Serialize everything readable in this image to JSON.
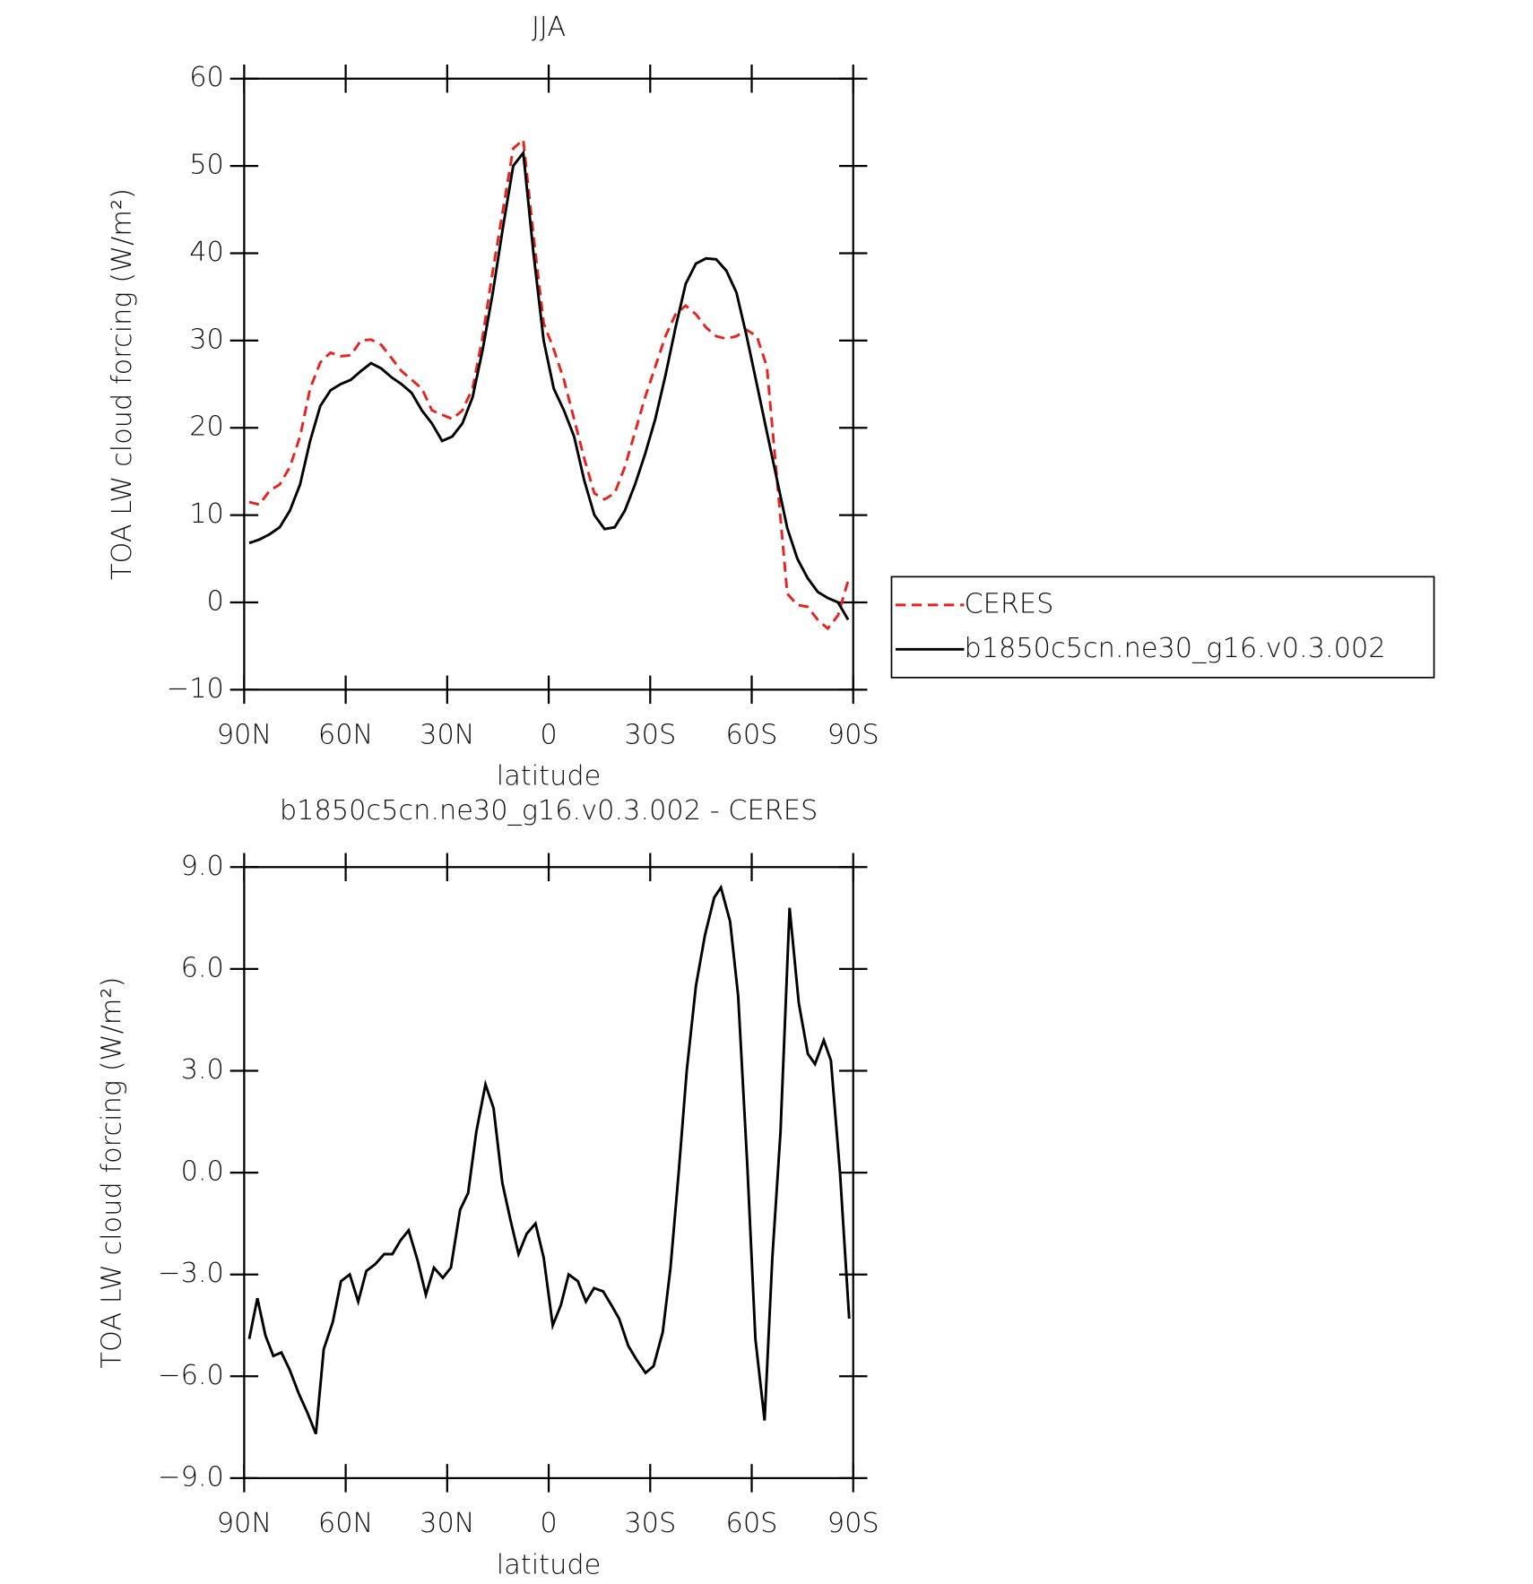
{
  "chart_data": [
    {
      "type": "line",
      "title": "JJA",
      "x_label": "latitude",
      "y_label": "TOA LW cloud forcing (W/m²)",
      "xlim": [
        90,
        -90
      ],
      "xticks": [
        {
          "value": 90,
          "label": "90N"
        },
        {
          "value": 60,
          "label": "60N"
        },
        {
          "value": 30,
          "label": "30N"
        },
        0,
        {
          "value": -30,
          "label": "30S"
        },
        {
          "value": -60,
          "label": "60S"
        },
        {
          "value": -90,
          "label": "90S"
        }
      ],
      "ylim": [
        -10,
        60
      ],
      "yticks": [
        {
          "value": -10,
          "label": "−10"
        },
        0,
        10,
        20,
        30,
        40,
        50,
        60
      ],
      "legend": "right",
      "x": [
        88.5,
        85.5,
        82.5,
        79.5,
        76.5,
        73.5,
        70.5,
        67.5,
        64.5,
        61.5,
        58.5,
        55.5,
        52.5,
        49.5,
        46.5,
        43.5,
        40.5,
        37.5,
        34.5,
        31.5,
        28.5,
        25.5,
        22.5,
        19.5,
        16.5,
        13.5,
        10.5,
        7.5,
        4.5,
        1.5,
        -1.5,
        -4.5,
        -7.5,
        -10.5,
        -13.5,
        -16.5,
        -19.5,
        -22.5,
        -25.5,
        -28.5,
        -31.5,
        -34.5,
        -37.5,
        -40.5,
        -43.5,
        -46.5,
        -49.5,
        -52.5,
        -55.5,
        -58.5,
        -61.5,
        -64.5,
        -67.5,
        -70.5,
        -73.5,
        -76.5,
        -79.5,
        -82.5,
        -85.5,
        -88.5
      ],
      "series": [
        {
          "name": "CERES",
          "color": "#e8231f",
          "linestyle": "dashed",
          "values": [
            11.5,
            11.2,
            12.8,
            13.5,
            15.5,
            19.0,
            24.5,
            27.5,
            28.6,
            28.2,
            28.3,
            30.0,
            30.1,
            29.5,
            28.0,
            26.5,
            25.5,
            24.5,
            22.0,
            21.5,
            21.0,
            22.0,
            24.5,
            30.5,
            38.0,
            45.0,
            52.0,
            53.0,
            42.0,
            32.0,
            29.0,
            25.5,
            21.0,
            16.5,
            12.5,
            11.8,
            12.5,
            15.5,
            19.5,
            23.5,
            27.0,
            30.5,
            33.0,
            34.0,
            33.0,
            31.5,
            30.5,
            30.2,
            30.5,
            31.2,
            30.5,
            27.0,
            14.0,
            1.0,
            -0.3,
            -0.5,
            -2.0,
            -3.0,
            -1.5,
            2.5
          ]
        },
        {
          "name": "b1850c5cn.ne30_g16.v0.3.002",
          "color": "#000000",
          "linestyle": "solid",
          "values": [
            6.8,
            7.2,
            7.8,
            8.6,
            10.5,
            13.5,
            18.5,
            22.5,
            24.3,
            25.0,
            25.5,
            26.5,
            27.4,
            26.8,
            25.8,
            25.0,
            24.0,
            22.0,
            20.5,
            18.5,
            19.0,
            20.5,
            23.5,
            29.0,
            35.5,
            43.0,
            50.0,
            51.5,
            40.0,
            30.0,
            24.5,
            22.0,
            19.0,
            14.0,
            10.0,
            8.4,
            8.6,
            10.5,
            13.5,
            17.0,
            21.0,
            26.0,
            31.5,
            36.5,
            38.8,
            39.4,
            39.3,
            38.0,
            35.5,
            30.5,
            25.0,
            19.5,
            14.0,
            8.5,
            5.0,
            2.8,
            1.2,
            0.5,
            0.0,
            -2.0
          ]
        }
      ]
    },
    {
      "type": "line",
      "title": "b1850c5cn.ne30_g16.v0.3.002 - CERES",
      "x_label": "latitude",
      "y_label": "TOA LW cloud forcing (W/m²)",
      "xlim": [
        90,
        -90
      ],
      "xticks": [
        {
          "value": 90,
          "label": "90N"
        },
        {
          "value": 60,
          "label": "60N"
        },
        {
          "value": 30,
          "label": "30N"
        },
        0,
        {
          "value": -30,
          "label": "30S"
        },
        {
          "value": -60,
          "label": "60S"
        },
        {
          "value": -90,
          "label": "90S"
        }
      ],
      "ylim": [
        -9,
        9
      ],
      "yticks": [
        {
          "value": -9,
          "label": "−9.0"
        },
        {
          "value": -6,
          "label": "−6.0"
        },
        {
          "value": -3,
          "label": "−3.0"
        },
        {
          "value": 0,
          "label": "0.0"
        },
        {
          "value": 3,
          "label": "3.0"
        },
        {
          "value": 6,
          "label": "6.0"
        },
        {
          "value": 9,
          "label": "9.0"
        }
      ],
      "x": [
        88.5,
        86.1,
        83.7,
        81.4,
        79.0,
        76.6,
        73.9,
        71.2,
        68.8,
        66.5,
        63.8,
        61.4,
        58.8,
        56.3,
        53.9,
        51.3,
        48.6,
        46.2,
        43.8,
        41.4,
        38.7,
        36.3,
        33.9,
        31.3,
        28.9,
        26.2,
        23.8,
        21.4,
        18.7,
        16.3,
        13.7,
        11.3,
        8.9,
        6.5,
        3.9,
        1.5,
        -1.2,
        -3.6,
        -5.9,
        -8.6,
        -11.0,
        -13.4,
        -16.1,
        -18.5,
        -20.8,
        -23.5,
        -25.9,
        -28.6,
        -31.0,
        -33.7,
        -36.0,
        -38.4,
        -40.8,
        -43.5,
        -46.2,
        -48.9,
        -50.9,
        -53.6,
        -56.0,
        -58.7,
        -61.1,
        -63.8,
        -66.1,
        -68.5,
        -71.2,
        -73.9,
        -76.6,
        -78.7,
        -81.3,
        -83.4,
        -86.1,
        -88.8
      ],
      "series": [
        {
          "color": "#000000",
          "linestyle": "solid",
          "values": [
            -4.9,
            -3.7,
            -4.8,
            -5.4,
            -5.3,
            -5.8,
            -6.5,
            -7.1,
            -7.7,
            -5.2,
            -4.4,
            -3.2,
            -3.0,
            -3.8,
            -2.9,
            -2.7,
            -2.4,
            -2.4,
            -2.0,
            -1.7,
            -2.6,
            -3.6,
            -2.8,
            -3.1,
            -2.8,
            -1.1,
            -0.6,
            1.2,
            2.6,
            1.9,
            -0.3,
            -1.4,
            -2.4,
            -1.8,
            -1.5,
            -2.5,
            -4.5,
            -3.9,
            -3.0,
            -3.2,
            -3.8,
            -3.4,
            -3.5,
            -3.9,
            -4.3,
            -5.1,
            -5.5,
            -5.9,
            -5.7,
            -4.7,
            -2.8,
            0.0,
            3.0,
            5.5,
            7.0,
            8.1,
            8.4,
            7.4,
            5.2,
            0.2,
            -4.9,
            -7.3,
            -2.5,
            1.2,
            7.8,
            5.0,
            3.5,
            3.2,
            3.9,
            3.3,
            0.0,
            -4.3
          ]
        }
      ]
    }
  ]
}
